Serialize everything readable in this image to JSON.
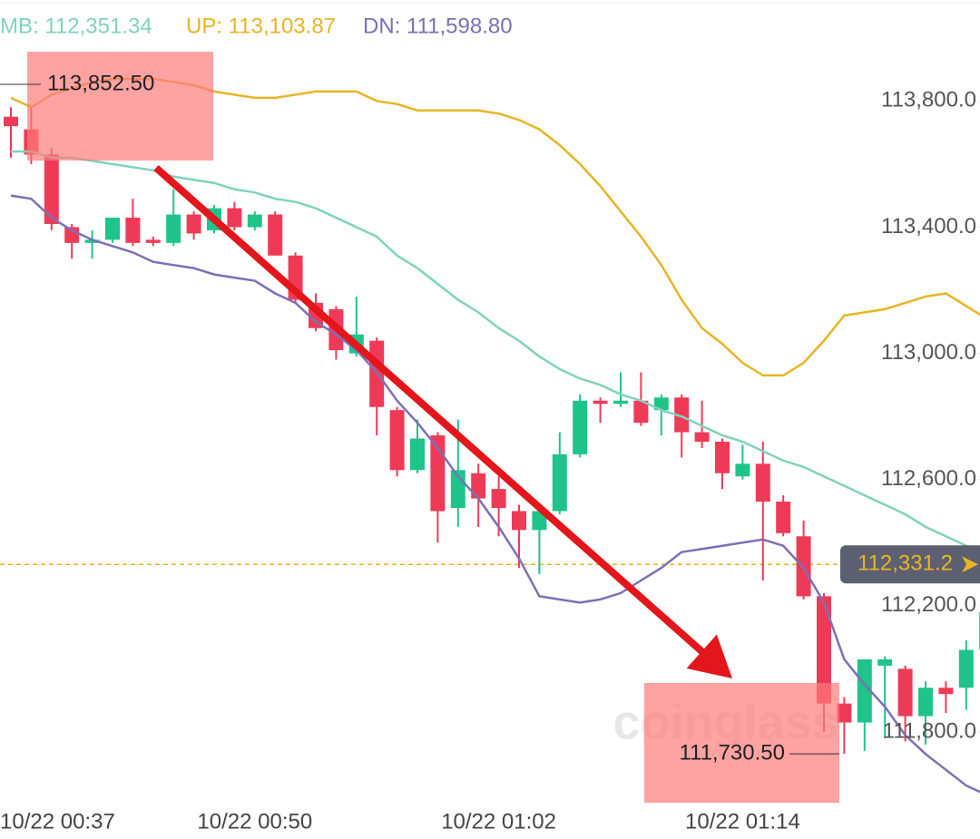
{
  "chart_data": {
    "type": "candlestick",
    "categories": [
      "10/22 00:37",
      null,
      null,
      null,
      null,
      null,
      null,
      null,
      null,
      null,
      null,
      null,
      "10/22 00:50",
      null,
      null,
      null,
      null,
      null,
      null,
      null,
      null,
      null,
      null,
      null,
      "10/22 01:02",
      null,
      null,
      null,
      null,
      null,
      null,
      null,
      null,
      null,
      null,
      null,
      "10/22 01:14",
      null,
      null,
      null,
      null,
      null,
      null,
      null,
      null,
      null,
      null,
      null,
      null
    ],
    "open": [
      113750,
      113710,
      113630,
      113400,
      113350,
      113360,
      113430,
      113360,
      113350,
      113440,
      113390,
      113460,
      113400,
      113440,
      113310,
      113160,
      113140,
      113000,
      113040,
      112820,
      112630,
      112740,
      112510,
      112620,
      112570,
      112500,
      112440,
      112500,
      112680,
      112850,
      112840,
      112850,
      112820,
      112860,
      112750,
      112720,
      112610,
      112650,
      112530,
      112420,
      112230,
      111890,
      111830,
      112010,
      112000,
      111850,
      111940,
      111940,
      112060
    ],
    "high": [
      113780,
      113780,
      113650,
      113410,
      113390,
      113430,
      113490,
      113370,
      113520,
      113450,
      113470,
      113480,
      113450,
      113450,
      113320,
      113190,
      113150,
      113180,
      113050,
      112830,
      112790,
      112750,
      112790,
      112650,
      112610,
      112520,
      112510,
      112750,
      112870,
      112860,
      112940,
      112940,
      112870,
      112870,
      112850,
      112730,
      112710,
      112720,
      112550,
      112470,
      112240,
      111910,
      112030,
      112040,
      112010,
      111960,
      111960,
      112090,
      112220
    ],
    "low": [
      113620,
      113600,
      113390,
      113300,
      113300,
      113350,
      113340,
      113340,
      113340,
      113360,
      113380,
      113390,
      113390,
      113310,
      113160,
      113070,
      112980,
      112990,
      112740,
      112610,
      112620,
      112400,
      112450,
      112450,
      112420,
      112320,
      112300,
      112490,
      112670,
      112780,
      112830,
      112770,
      112740,
      112670,
      112700,
      112570,
      112600,
      112280,
      112420,
      112220,
      111800,
      111730.5,
      111740,
      111780,
      111770,
      111760,
      111860,
      111870,
      112060
    ],
    "close": [
      113720,
      113630,
      113410,
      113350,
      113360,
      113430,
      113350,
      113350,
      113440,
      113380,
      113460,
      113400,
      113440,
      113310,
      113170,
      113080,
      113010,
      113060,
      112830,
      112630,
      112730,
      112500,
      112630,
      112540,
      112510,
      112440,
      112500,
      112680,
      112850,
      112840,
      112850,
      112780,
      112860,
      112750,
      112720,
      112620,
      112650,
      112530,
      112430,
      112230,
      111890,
      111830,
      112030,
      112030,
      111850,
      111940,
      111920,
      112060,
      112180
    ],
    "up_color": "#1ec48a",
    "down_color": "#ef3a57",
    "series": [
      {
        "name": "MB: 112,351.34",
        "color": "#7fd3bd",
        "values": [
          113640,
          113640,
          113620,
          113620,
          113610,
          113600,
          113590,
          113580,
          113560,
          113550,
          113540,
          113520,
          113510,
          113490,
          113480,
          113460,
          113430,
          113400,
          113370,
          113310,
          113270,
          113220,
          113170,
          113130,
          113080,
          113040,
          112990,
          112950,
          112920,
          112900,
          112870,
          112850,
          112820,
          112800,
          112770,
          112740,
          112720,
          112690,
          112660,
          112640,
          112610,
          112580,
          112550,
          112520,
          112490,
          112450,
          112420,
          112390,
          112360
        ]
      },
      {
        "name": "UP: 113,103.87",
        "color": "#e9b524",
        "values": [
          113810,
          113780,
          113820,
          113840,
          113860,
          113870,
          113870,
          113870,
          113860,
          113850,
          113830,
          113820,
          113810,
          113810,
          113820,
          113830,
          113830,
          113830,
          113800,
          113790,
          113770,
          113770,
          113770,
          113770,
          113760,
          113740,
          113710,
          113660,
          113600,
          113530,
          113450,
          113370,
          113280,
          113170,
          113080,
          113030,
          112970,
          112930,
          112930,
          112970,
          113040,
          113120,
          113130,
          113140,
          113160,
          113180,
          113190,
          113150,
          113110
        ]
      },
      {
        "name": "DN: 111,598.80",
        "color": "#7c70b6",
        "values": [
          113500,
          113490,
          113430,
          113390,
          113360,
          113340,
          113320,
          113290,
          113280,
          113270,
          113250,
          113240,
          113230,
          113190,
          113160,
          113100,
          113060,
          113010,
          112940,
          112850,
          112780,
          112700,
          112610,
          112540,
          112450,
          112350,
          112230,
          112220,
          112210,
          112220,
          112240,
          112280,
          112320,
          112370,
          112380,
          112390,
          112400,
          112410,
          112390,
          112320,
          112210,
          112030,
          111950,
          111880,
          111790,
          111730,
          111680,
          111630,
          111600
        ]
      }
    ],
    "ylim": [
      111590,
      114120
    ],
    "yticks": [
      {
        "value": 113800,
        "label": "113,800.0"
      },
      {
        "value": 113400,
        "label": "113,400.0"
      },
      {
        "value": 113000,
        "label": "113,000.0"
      },
      {
        "value": 112600,
        "label": "112,600.0"
      },
      {
        "value": 112200,
        "label": "112,200.0"
      },
      {
        "value": 111800,
        "label": "111,800.0"
      }
    ],
    "max_marker": {
      "value": 113852.5,
      "label": "113,852.50"
    },
    "min_marker": {
      "value": 111730.5,
      "label": "111,730.50"
    },
    "last_price": {
      "value": 112331.2,
      "label": "112,331.2",
      "color": "#e9b524"
    },
    "watermark": "coinglass"
  }
}
